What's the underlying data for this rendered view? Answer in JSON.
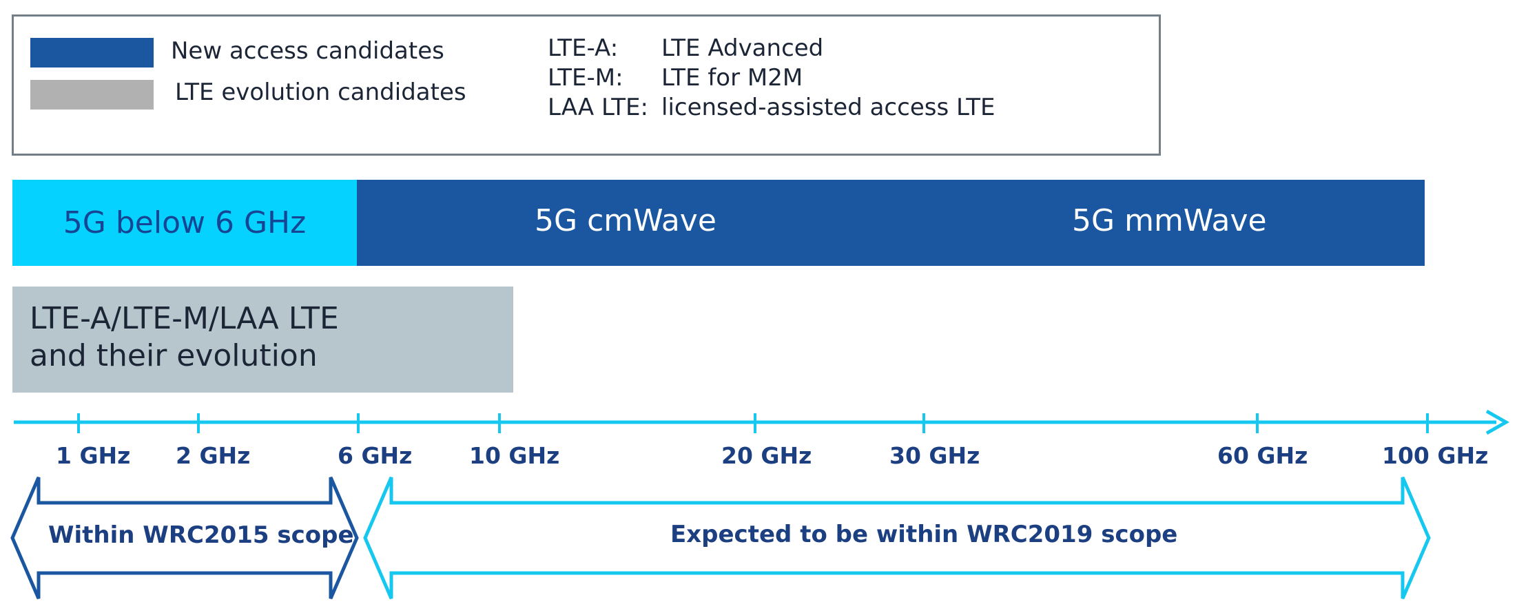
{
  "legend": {
    "items": [
      {
        "label": "New access candidates",
        "color": "#1b56a0"
      },
      {
        "label": "LTE evolution candidates",
        "color": "#b1b1b1"
      }
    ],
    "abbreviations": [
      {
        "key": "LTE-A:",
        "value": "LTE Advanced"
      },
      {
        "key": "LTE-M:",
        "value": "LTE for M2M"
      },
      {
        "key": "LAA LTE:",
        "value": "licensed-assisted access LTE"
      }
    ]
  },
  "bands": {
    "below6": {
      "label": "5G below 6 GHz",
      "color": "#05d2ff"
    },
    "cmwave": {
      "label": "5G cmWave",
      "color": "#1b56a0"
    },
    "mmwave": {
      "label": "5G mmWave",
      "color": "#1b56a0"
    }
  },
  "lte_box": {
    "line1": "LTE-A/LTE-M/LAA LTE",
    "line2": "and their evolution",
    "color": "#b7c6cc"
  },
  "axis": {
    "color": "#16c8ef",
    "ticks": [
      "1 GHz",
      "2 GHz",
      "6 GHz",
      "10 GHz",
      "20 GHz",
      "30 GHz",
      "60 GHz",
      "100 GHz"
    ]
  },
  "scopes": {
    "wrc2015": {
      "label": "Within WRC2015 scope",
      "color": "#1b56a0"
    },
    "wrc2019": {
      "label": "Expected to be within WRC2019 scope",
      "color": "#16c8ef"
    }
  }
}
